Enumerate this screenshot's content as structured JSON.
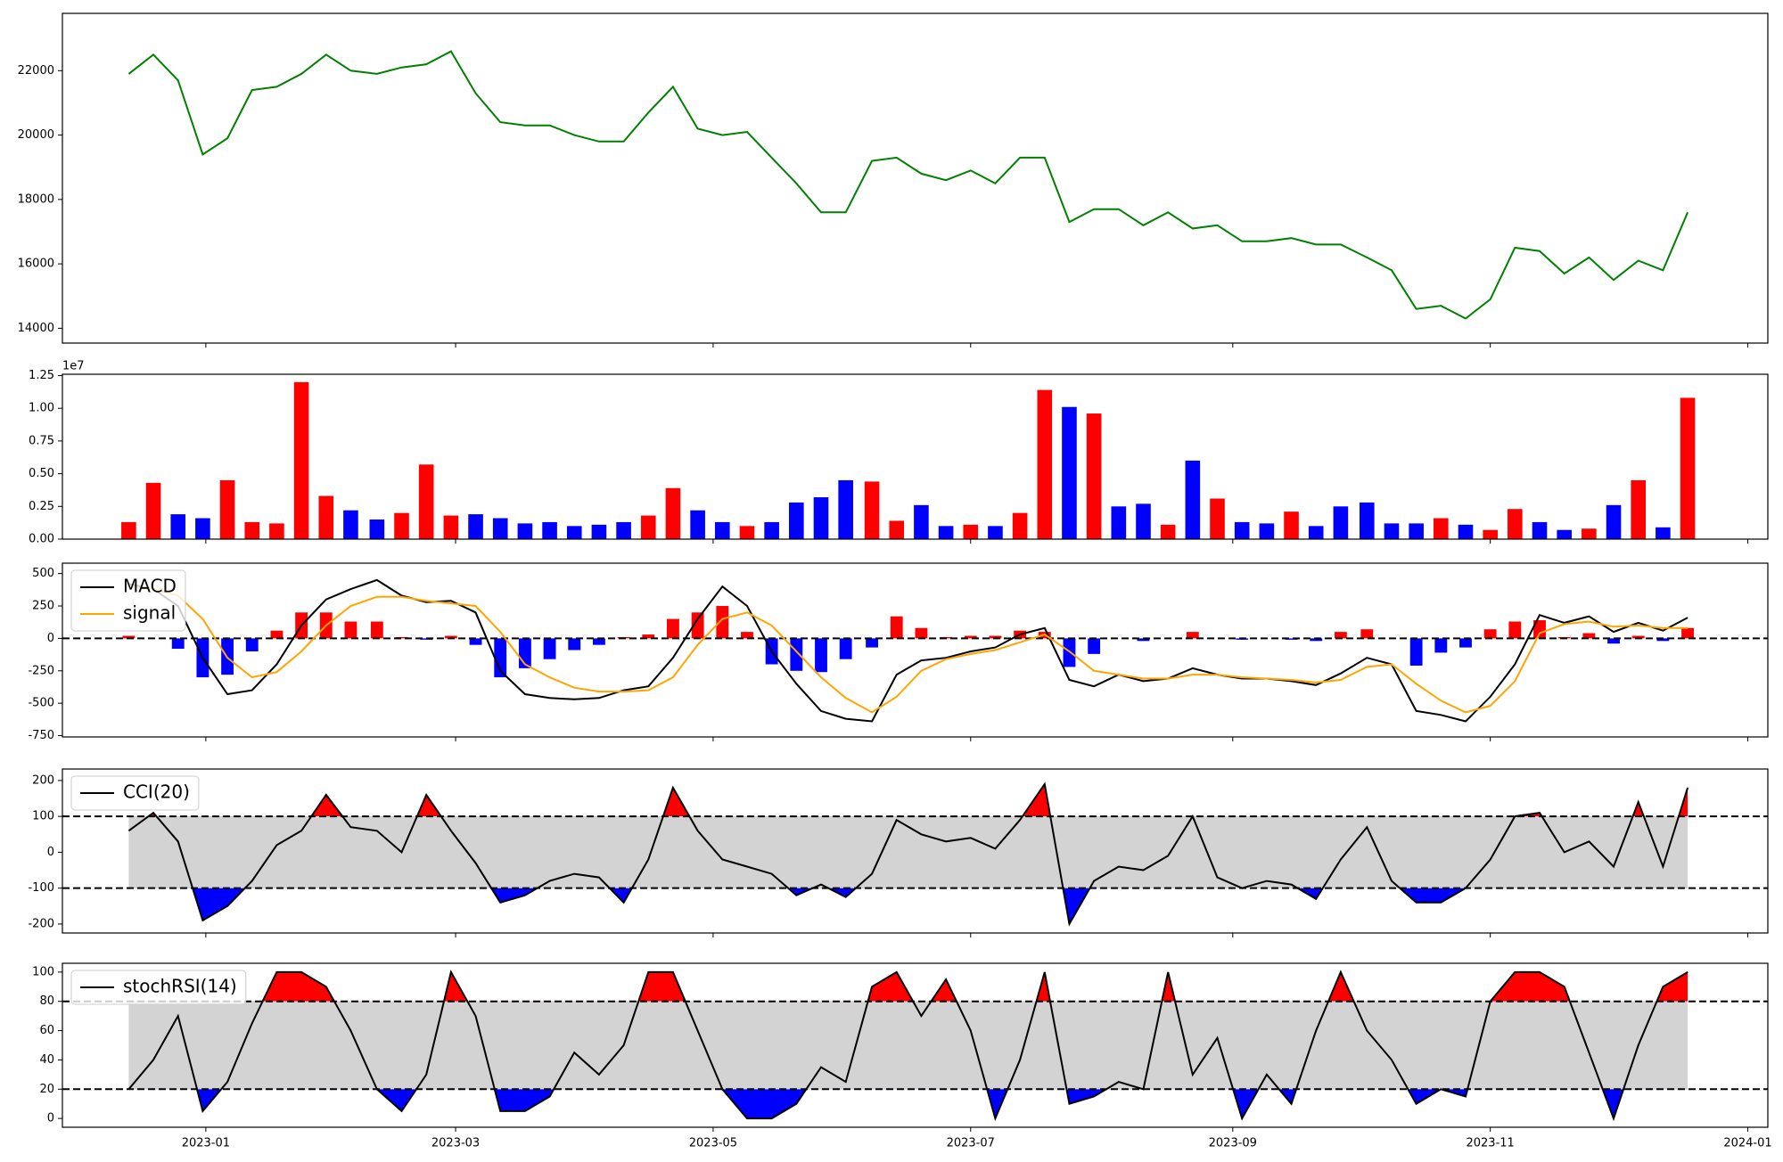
{
  "chart_data": [
    {
      "type": "line",
      "x": [
        2022.95,
        2022.966,
        2022.982,
        2022.998,
        2023.014,
        2023.03,
        2023.046,
        2023.062,
        2023.078,
        2023.094,
        2023.111,
        2023.127,
        2023.143,
        2023.159,
        2023.175,
        2023.191,
        2023.207,
        2023.223,
        2023.239,
        2023.255,
        2023.271,
        2023.287,
        2023.303,
        2023.319,
        2023.335,
        2023.351,
        2023.367,
        2023.383,
        2023.399,
        2023.415,
        2023.432,
        2023.448,
        2023.464,
        2023.48,
        2023.496,
        2023.512,
        2023.528,
        2023.544,
        2023.56,
        2023.576,
        2023.592,
        2023.608,
        2023.624,
        2023.64,
        2023.656,
        2023.672,
        2023.688,
        2023.704,
        2023.72,
        2023.736,
        2023.753,
        2023.769,
        2023.785,
        2023.801,
        2023.817,
        2023.833,
        2023.849,
        2023.865,
        2023.881,
        2023.897,
        2023.913,
        2023.929,
        2023.945,
        2023.961
      ],
      "xlim": [
        2022.907,
        2024.013
      ],
      "series": [
        {
          "color": "green",
          "values": [
            21900,
            22500,
            21700,
            19400,
            19900,
            21400,
            21500,
            21900,
            22500,
            22000,
            21900,
            22100,
            22200,
            22600,
            21300,
            20400,
            20300,
            20300,
            20000,
            19800,
            19800,
            20700,
            21500,
            20200,
            20000,
            20100,
            19300,
            18500,
            17600,
            17600,
            19200,
            19300,
            18800,
            18600,
            18900,
            18500,
            19300,
            19300,
            17300,
            17700,
            17700,
            17200,
            17600,
            17100,
            17200,
            16700,
            16700,
            16800,
            16600,
            16600,
            16200,
            15800,
            14600,
            14700,
            14300,
            14900,
            16500,
            16400,
            15700,
            16200,
            15500,
            16100,
            15800,
            17600
          ]
        }
      ],
      "ylim": [
        13540,
        23780
      ],
      "yticks": [
        14000,
        16000,
        18000,
        20000,
        22000
      ]
    },
    {
      "type": "bar",
      "values": [
        1300000,
        4300000,
        1900000,
        1600000,
        4500000,
        1300000,
        1200000,
        12000000,
        3300000,
        2200000,
        1500000,
        2000000,
        5700000,
        1800000,
        1900000,
        1600000,
        1200000,
        1300000,
        1000000,
        1100000,
        1300000,
        1800000,
        3900000,
        2200000,
        1300000,
        1000000,
        1300000,
        2800000,
        3200000,
        4500000,
        4400000,
        1400000,
        2600000,
        1000000,
        1100000,
        1000000,
        2000000,
        11400000,
        10100000,
        9600000,
        2500000,
        2700000,
        1100000,
        6000000,
        3100000,
        1300000,
        1200000,
        2100000,
        1000000,
        2500000,
        2800000,
        1200000,
        1200000,
        1600000,
        1100000,
        700000,
        2300000,
        1300000,
        700000,
        800000,
        2600000,
        4500000,
        900000,
        10800000
      ],
      "colors": [
        "red",
        "red",
        "blue",
        "blue",
        "red",
        "red",
        "red",
        "red",
        "red",
        "blue",
        "blue",
        "red",
        "red",
        "red",
        "blue",
        "blue",
        "blue",
        "blue",
        "blue",
        "blue",
        "blue",
        "red",
        "red",
        "blue",
        "blue",
        "red",
        "blue",
        "blue",
        "blue",
        "blue",
        "red",
        "red",
        "blue",
        "blue",
        "red",
        "blue",
        "red",
        "red",
        "blue",
        "red",
        "blue",
        "blue",
        "red",
        "blue",
        "red",
        "blue",
        "blue",
        "red",
        "blue",
        "blue",
        "blue",
        "blue",
        "blue",
        "red",
        "blue",
        "red",
        "red",
        "blue",
        "blue",
        "red",
        "blue",
        "red",
        "blue",
        "red"
      ],
      "ylim": [
        0,
        12600000
      ],
      "yticks": [
        {
          "value": 0,
          "label": "0.00"
        },
        {
          "value": 2500000,
          "label": "0.25"
        },
        {
          "value": 5000000,
          "label": "0.50"
        },
        {
          "value": 7500000,
          "label": "0.75"
        },
        {
          "value": 10000000,
          "label": "1.00"
        },
        {
          "value": 12500000,
          "label": "1.25"
        }
      ],
      "offset_label": "1e7"
    },
    {
      "type": "line",
      "series": [
        {
          "name": "MACD",
          "color": "black",
          "values": [
            420,
            380,
            250,
            -150,
            -430,
            -400,
            -200,
            100,
            300,
            380,
            450,
            330,
            280,
            290,
            200,
            -250,
            -430,
            -460,
            -470,
            -460,
            -400,
            -370,
            -150,
            150,
            400,
            250,
            -100,
            -350,
            -560,
            -620,
            -640,
            -280,
            -170,
            -150,
            -100,
            -70,
            30,
            80,
            -320,
            -370,
            -280,
            -330,
            -310,
            -230,
            -280,
            -310,
            -310,
            -330,
            -360,
            -270,
            -150,
            -200,
            -560,
            -590,
            -640,
            -450,
            -200,
            180,
            120,
            170,
            50,
            120,
            60,
            160
          ]
        },
        {
          "name": "signal",
          "color": "orange",
          "values": [
            400,
            380,
            330,
            150,
            -150,
            -300,
            -260,
            -100,
            100,
            250,
            320,
            320,
            290,
            270,
            250,
            50,
            -200,
            -300,
            -380,
            -410,
            -410,
            -400,
            -300,
            -50,
            150,
            200,
            100,
            -100,
            -300,
            -460,
            -570,
            -450,
            -250,
            -160,
            -120,
            -90,
            -30,
            30,
            -100,
            -250,
            -280,
            -310,
            -310,
            -280,
            -280,
            -300,
            -310,
            -320,
            -340,
            -320,
            -220,
            -200,
            -350,
            -480,
            -570,
            -520,
            -330,
            40,
            110,
            130,
            90,
            100,
            80,
            80
          ]
        }
      ],
      "histogram": {
        "values": [
          20,
          0,
          -80,
          -300,
          -280,
          -100,
          60,
          200,
          200,
          130,
          130,
          10,
          -10,
          20,
          -50,
          -300,
          -230,
          -160,
          -90,
          -50,
          10,
          30,
          150,
          200,
          250,
          50,
          -200,
          -250,
          -260,
          -160,
          -70,
          170,
          80,
          10,
          20,
          20,
          60,
          50,
          -220,
          -120,
          0,
          -20,
          0,
          50,
          0,
          -10,
          0,
          -10,
          -20,
          50,
          70,
          0,
          -210,
          -110,
          -70,
          70,
          130,
          140,
          10,
          40,
          -40,
          20,
          -20,
          80
        ],
        "pos_color": "red",
        "neg_color": "blue"
      },
      "hlines": [
        0
      ],
      "hline_style": "dashed",
      "ylim": [
        -760,
        580
      ],
      "yticks": [
        -750,
        -500,
        -250,
        0,
        250,
        500
      ],
      "legend": "upper left"
    },
    {
      "type": "band",
      "series": [
        {
          "name": "CCI(20)",
          "color": "black",
          "values": [
            60,
            110,
            30,
            -190,
            -150,
            -80,
            20,
            60,
            160,
            70,
            60,
            0,
            160,
            60,
            -30,
            -140,
            -120,
            -80,
            -60,
            -70,
            -140,
            -20,
            180,
            60,
            -20,
            -40,
            -60,
            -120,
            -90,
            -125,
            -60,
            90,
            50,
            30,
            40,
            10,
            90,
            190,
            -200,
            -80,
            -40,
            -50,
            -10,
            100,
            -70,
            -100,
            -80,
            -90,
            -130,
            -20,
            70,
            -80,
            -140,
            -140,
            -100,
            -20,
            100,
            110,
            0,
            30,
            -40,
            140,
            -40,
            180
          ]
        }
      ],
      "bands": [
        -100,
        100
      ],
      "band_color": "lightgray",
      "above_color": "red",
      "below_color": "blue",
      "ylim": [
        -225,
        232
      ],
      "yticks": [
        -200,
        -100,
        0,
        100,
        200
      ],
      "legend": "upper left"
    },
    {
      "type": "band",
      "series": [
        {
          "name": "stochRSI(14)",
          "color": "black",
          "values": [
            20,
            40,
            70,
            5,
            25,
            65,
            100,
            100,
            90,
            60,
            20,
            5,
            30,
            100,
            70,
            5,
            5,
            15,
            45,
            30,
            50,
            100,
            100,
            60,
            20,
            0,
            0,
            10,
            35,
            25,
            90,
            100,
            70,
            95,
            60,
            0,
            40,
            100,
            10,
            15,
            25,
            20,
            100,
            30,
            55,
            0,
            30,
            10,
            60,
            100,
            60,
            40,
            10,
            20,
            15,
            80,
            100,
            100,
            90,
            45,
            0,
            50,
            90,
            100
          ]
        }
      ],
      "bands": [
        20,
        80
      ],
      "band_color": "lightgray",
      "above_color": "red",
      "below_color": "blue",
      "ylim": [
        -6,
        106
      ],
      "yticks": [
        0,
        20,
        40,
        60,
        80,
        100
      ],
      "legend": "upper left",
      "xticks": [
        {
          "value": 2023.0,
          "label": "2023-01"
        },
        {
          "value": 2023.162,
          "label": "2023-03"
        },
        {
          "value": 2023.329,
          "label": "2023-05"
        },
        {
          "value": 2023.496,
          "label": "2023-07"
        },
        {
          "value": 2023.666,
          "label": "2023-09"
        },
        {
          "value": 2023.833,
          "label": "2023-11"
        },
        {
          "value": 2024.0,
          "label": "2024-01"
        }
      ]
    }
  ]
}
